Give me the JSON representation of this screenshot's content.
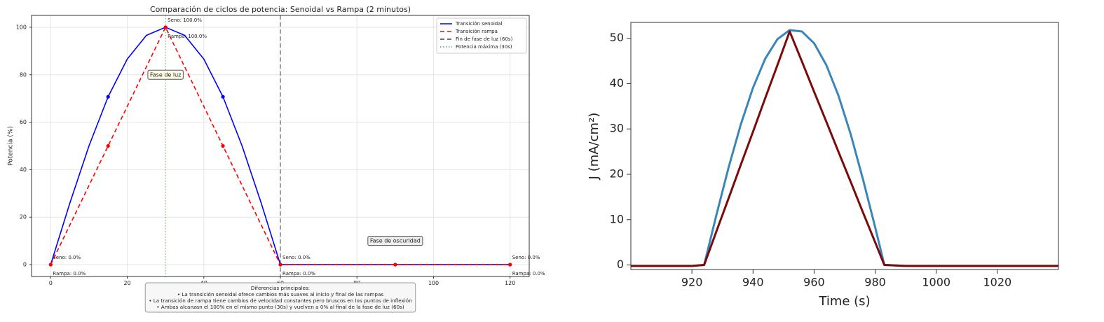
{
  "chart_data": [
    {
      "type": "line",
      "title": "Comparación de ciclos de potencia: Senoidal vs Rampa (2 minutos)",
      "y_label": "Potencia (%)",
      "x": [
        0,
        5,
        10,
        15,
        20,
        25,
        30,
        35,
        40,
        45,
        50,
        55,
        60,
        65,
        70,
        75,
        80,
        85,
        90,
        95,
        100,
        105,
        110,
        115,
        120
      ],
      "series": [
        {
          "name": "Transición senoidal",
          "color": "#0000ff",
          "style": "solid",
          "values": [
            0,
            25.88,
            50,
            70.71,
            86.6,
            96.59,
            100,
            96.59,
            86.6,
            70.71,
            50,
            25.88,
            0,
            0,
            0,
            0,
            0,
            0,
            0,
            0,
            0,
            0,
            0,
            0,
            0
          ]
        },
        {
          "name": "Transición rampa",
          "color": "#ff0000",
          "style": "dashed",
          "values": [
            0,
            16.67,
            33.33,
            50,
            66.67,
            83.33,
            100,
            83.33,
            66.67,
            50,
            33.33,
            16.67,
            0,
            0,
            0,
            0,
            0,
            0,
            0,
            0,
            0,
            0,
            0,
            0,
            0
          ]
        }
      ],
      "marker_x": [
        0,
        15,
        30,
        45,
        60,
        90,
        120
      ],
      "vlines": [
        {
          "name": "Fin de fase de luz (60s)",
          "x": 60,
          "color": "#444444",
          "style": "dashed"
        },
        {
          "name": "Potencia máxima (30s)",
          "x": 30,
          "color": "#4caf50",
          "style": "dotted"
        }
      ],
      "annotations": [
        {
          "text": "Seno: 0.0%",
          "x": 0,
          "y": 0,
          "series": 0
        },
        {
          "text": "Rampa: 0.0%",
          "x": 0,
          "y": 0,
          "series": 1
        },
        {
          "text": "Seno: 100.0%",
          "x": 30,
          "y": 100,
          "series": 0
        },
        {
          "text": "Rampa: 100.0%",
          "x": 30,
          "y": 100,
          "series": 1
        },
        {
          "text": "Seno: 0.0%",
          "x": 60,
          "y": 0,
          "series": 0
        },
        {
          "text": "Rampa: 0.0%",
          "x": 60,
          "y": 0,
          "series": 1
        },
        {
          "text": "Seno: 0.0%",
          "x": 120,
          "y": 0,
          "series": 0
        },
        {
          "text": "Rampa: 0.0%",
          "x": 120,
          "y": 0,
          "series": 1
        }
      ],
      "phase_boxes": [
        {
          "text": "Fase de luz",
          "x": 30,
          "y": 80,
          "color": "#fffde7"
        },
        {
          "text": "Fase de oscuridad",
          "x": 90,
          "y": 10,
          "color": "#eeeeee"
        }
      ],
      "note": [
        "Diferencias principales:",
        "• La transición senoidal ofrece cambios más suaves al inicio y final de las rampas",
        "• La transición de rampa tiene cambios de velocidad constantes pero bruscos en los puntos de inflexión",
        "• Ambas alcanzan el 100% en el mismo punto (30s) y vuelven a 0% al final de la fase de luz (60s)"
      ],
      "xlim": [
        -5,
        125
      ],
      "xticks": [
        0,
        20,
        40,
        60,
        80,
        100,
        120
      ],
      "ylim": [
        -5,
        105
      ],
      "yticks": [
        0,
        20,
        40,
        60,
        80,
        100
      ],
      "grid": true,
      "legend": "upper right"
    },
    {
      "type": "line",
      "x_label": "Time (s)",
      "y_label": "J (mA/cm²)",
      "x": [
        900,
        910,
        920,
        924,
        928,
        932,
        936,
        940,
        944,
        948,
        952,
        956,
        960,
        964,
        968,
        972,
        976,
        980,
        983,
        990,
        1000,
        1010,
        1020,
        1030,
        1040
      ],
      "series": [
        {
          "color": "#3a86b8",
          "style": "solid",
          "values": [
            -0.2,
            -0.2,
            -0.2,
            0,
            11.0,
            21.5,
            31.0,
            39.1,
            45.5,
            49.8,
            51.8,
            51.5,
            48.9,
            44.1,
            37.3,
            28.8,
            18.9,
            8.3,
            0,
            -0.2,
            -0.2,
            -0.2,
            -0.2,
            -0.2,
            -0.2
          ]
        },
        {
          "color": "#7b0a0a",
          "style": "solid",
          "values": [
            -0.2,
            -0.2,
            -0.2,
            0,
            7.4,
            14.7,
            22.1,
            29.4,
            36.8,
            44.1,
            51.5,
            44.9,
            38.2,
            31.6,
            24.9,
            18.3,
            11.6,
            5.0,
            0,
            -0.2,
            -0.2,
            -0.2,
            -0.2,
            -0.2,
            -0.2
          ]
        }
      ],
      "xlim": [
        900,
        1040
      ],
      "xticks": [
        920,
        940,
        960,
        980,
        1000,
        1020
      ],
      "ylim": [
        -1,
        53.5
      ],
      "yticks": [
        0,
        10,
        20,
        30,
        40,
        50
      ],
      "grid": false
    }
  ]
}
